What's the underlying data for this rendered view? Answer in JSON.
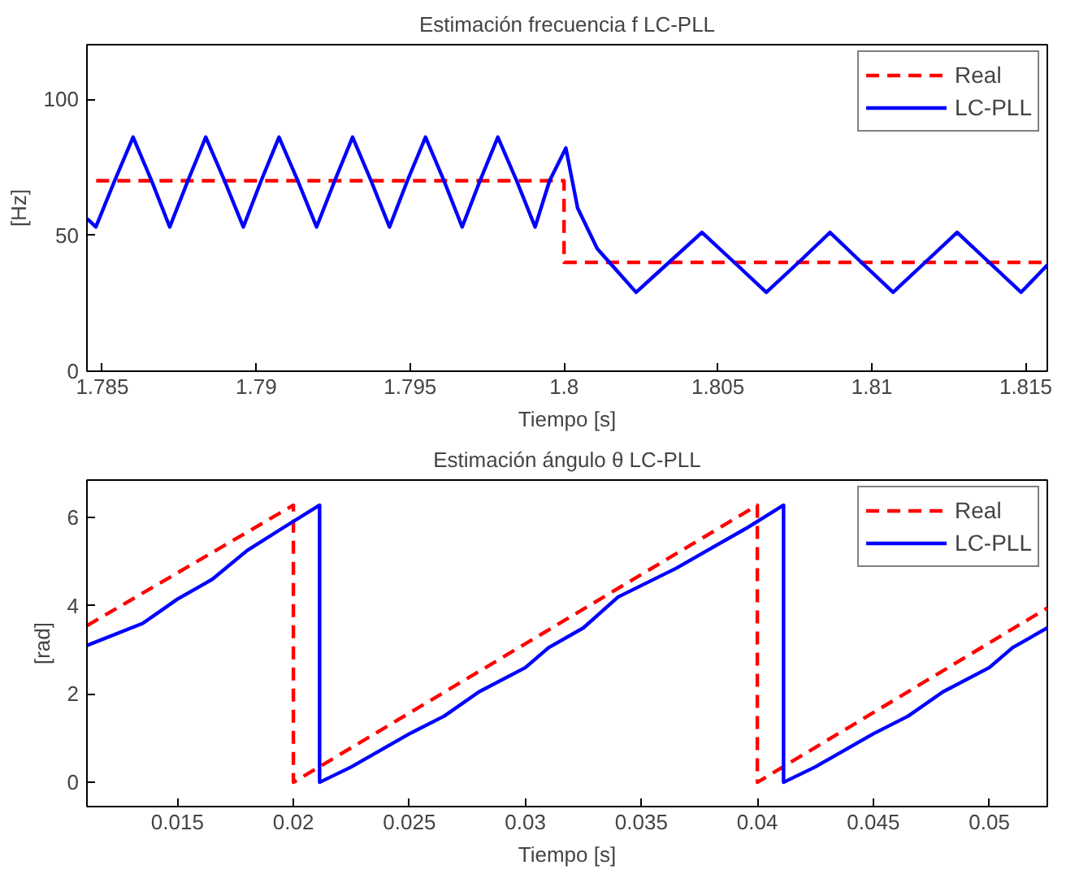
{
  "chart_data": [
    {
      "type": "line",
      "title": "Estimación frecuencia f LC-PLL",
      "xlabel": "Tiempo [s]",
      "ylabel": "[Hz]",
      "xlim": [
        1.7845,
        1.8157
      ],
      "ylim": [
        0,
        120
      ],
      "xticks": [
        1.785,
        1.79,
        1.795,
        1.8,
        1.805,
        1.81,
        1.815
      ],
      "yticks": [
        0,
        50,
        100
      ],
      "grid": false,
      "legend": "top right",
      "marker": "none",
      "series": [
        {
          "name": "Real",
          "color": "#ff0000",
          "line_style": "dashed",
          "x": [
            1.7848,
            1.8,
            1.8,
            1.8157
          ],
          "values": [
            70,
            70,
            40,
            40
          ]
        },
        {
          "name": "LC-PLL",
          "color": "#0000ff",
          "line_style": "solid",
          "x": [
            1.78451,
            1.78479,
            1.7854,
            1.786,
            1.7866,
            1.78719,
            1.78778,
            1.78836,
            1.78897,
            1.78958,
            1.79016,
            1.79074,
            1.79135,
            1.79196,
            1.79255,
            1.79313,
            1.79373,
            1.79433,
            1.79491,
            1.7955,
            1.7961,
            1.79669,
            1.79727,
            1.79785,
            1.79846,
            1.79906,
            1.79953,
            1.80006,
            1.80044,
            1.80108,
            1.80234,
            1.80341,
            1.80448,
            1.80553,
            1.80657,
            1.80762,
            1.80864,
            1.80966,
            1.81069,
            1.81173,
            1.81277,
            1.81381,
            1.81485,
            1.8157
          ],
          "values": [
            56,
            53,
            70,
            86,
            70,
            53,
            70,
            86,
            70,
            53,
            70,
            86,
            70,
            53,
            70,
            86,
            70,
            53,
            70,
            86,
            70,
            53,
            70,
            86,
            70,
            53,
            70,
            82,
            60,
            45,
            29,
            40,
            51,
            40,
            29,
            40,
            51,
            40,
            29,
            40,
            51,
            40,
            29,
            39
          ]
        }
      ]
    },
    {
      "type": "line",
      "title": "Estimación ángulo θ LC-PLL",
      "xlabel": "Tiempo [s]",
      "ylabel": "[rad]",
      "xlim": [
        0.0111,
        0.0525
      ],
      "ylim": [
        -0.55,
        6.85
      ],
      "xticks": [
        0.015,
        0.02,
        0.025,
        0.03,
        0.035,
        0.04,
        0.045,
        0.05
      ],
      "yticks": [
        0,
        2,
        4,
        6
      ],
      "grid": false,
      "legend": "top right",
      "marker": "none",
      "series": [
        {
          "name": "Real",
          "color": "#ff0000",
          "line_style": "dashed",
          "x": [
            0.0111,
            0.02,
            0.02,
            0.02,
            0.04,
            0.04,
            0.04,
            0.0525
          ],
          "values": [
            3.55,
            6.28,
            3.1,
            0,
            6.28,
            3.1,
            0,
            3.95
          ]
        },
        {
          "name": "LC-PLL",
          "color": "#0000ff",
          "line_style": "solid",
          "x": [
            0.0111,
            0.0135,
            0.015,
            0.0165,
            0.018,
            0.0195,
            0.02113,
            0.02113,
            0.02113,
            0.0225,
            0.025,
            0.0265,
            0.028,
            0.03,
            0.031,
            0.0325,
            0.034,
            0.0365,
            0.038,
            0.0395,
            0.04113,
            0.04113,
            0.04113,
            0.0425,
            0.045,
            0.0465,
            0.048,
            0.05,
            0.051,
            0.0525
          ],
          "values": [
            3.1,
            3.6,
            4.15,
            4.6,
            5.25,
            5.75,
            6.28,
            3.1,
            0,
            0.35,
            1.1,
            1.5,
            2.05,
            2.6,
            3.05,
            3.5,
            4.2,
            4.85,
            5.3,
            5.75,
            6.28,
            3.1,
            0,
            0.35,
            1.1,
            1.5,
            2.05,
            2.6,
            3.05,
            3.5
          ]
        }
      ]
    }
  ]
}
